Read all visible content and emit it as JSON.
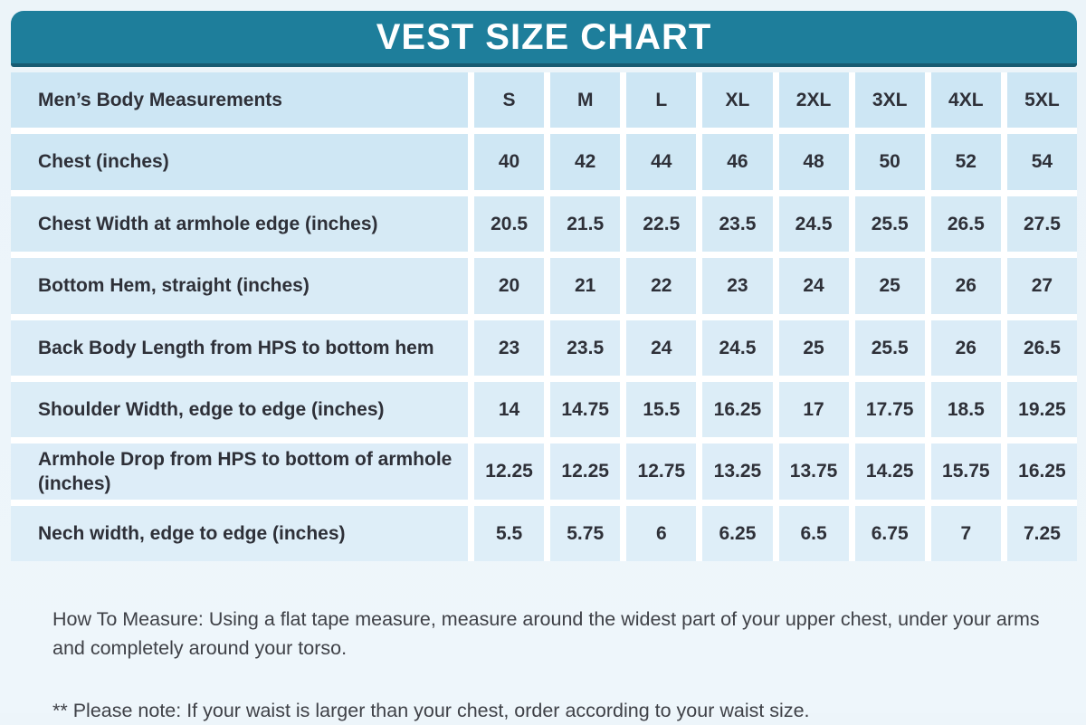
{
  "title": "VEST SIZE CHART",
  "colors": {
    "header_bg": "#1e7e9b",
    "header_underline": "#175b72",
    "title_text": "#ffffff",
    "page_bg": "#edf5fa",
    "gap_color": "#ffffff",
    "cell_text": "#2e3038",
    "note_text": "#3f4147",
    "row_colors": [
      "#cde6f4",
      "#cfe7f4",
      "#d6eaf5",
      "#d9ebf6",
      "#dbecf7",
      "#dcedf7",
      "#ddedf8",
      "#deeef8"
    ]
  },
  "chart_data": {
    "type": "table",
    "title": "VEST SIZE CHART",
    "header": {
      "label": "Men’s Body Measurements",
      "sizes": [
        "S",
        "M",
        "L",
        "XL",
        "2XL",
        "3XL",
        "4XL",
        "5XL"
      ]
    },
    "rows": [
      {
        "label": "Chest (inches)",
        "values": [
          "40",
          "42",
          "44",
          "46",
          "48",
          "50",
          "52",
          "54"
        ]
      },
      {
        "label": "Chest Width at armhole edge (inches)",
        "values": [
          "20.5",
          "21.5",
          "22.5",
          "23.5",
          "24.5",
          "25.5",
          "26.5",
          "27.5"
        ]
      },
      {
        "label": "Bottom Hem, straight (inches)",
        "values": [
          "20",
          "21",
          "22",
          "23",
          "24",
          "25",
          "26",
          "27"
        ]
      },
      {
        "label": "Back Body Length from HPS to bottom hem",
        "values": [
          "23",
          "23.5",
          "24",
          "24.5",
          "25",
          "25.5",
          "26",
          "26.5"
        ]
      },
      {
        "label": "Shoulder Width, edge to edge (inches)",
        "values": [
          "14",
          "14.75",
          "15.5",
          "16.25",
          "17",
          "17.75",
          "18.5",
          "19.25"
        ]
      },
      {
        "label": "Armhole Drop from HPS to bottom of armhole (inches)",
        "values": [
          "12.25",
          "12.25",
          "12.75",
          "13.25",
          "13.75",
          "14.25",
          "15.75",
          "16.25"
        ]
      },
      {
        "label": "Nech width, edge to edge (inches)",
        "values": [
          "5.5",
          "5.75",
          "6",
          "6.25",
          "6.5",
          "6.75",
          "7",
          "7.25"
        ]
      }
    ],
    "notes": [
      "How To Measure: Using a flat tape measure, measure around the widest part of your upper chest, under your arms and completely around your torso.",
      "** Please note: If your waist is larger than your chest, order according to your waist size."
    ]
  }
}
